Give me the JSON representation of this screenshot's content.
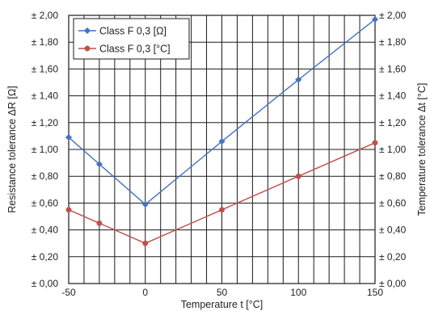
{
  "chart_data": {
    "type": "line",
    "title": "",
    "xlabel": "Temperature t [°C]",
    "ylabel": "Resistance tolerance ΔR [Ω]",
    "ylabel_right": "Temperature tolerance Δt [°C]",
    "x": [
      -50,
      -30,
      0,
      50,
      100,
      150
    ],
    "xlim": [
      -50,
      150
    ],
    "ylim": [
      0,
      2
    ],
    "xticks": [
      -50,
      0,
      50,
      100,
      150
    ],
    "xtick_labels": [
      "-50",
      "0",
      "50",
      "100",
      "150"
    ],
    "ytick_labels": [
      "± 0,00",
      "± 0,20",
      "± 0,40",
      "± 0,60",
      "± 0,80",
      "± 1,00",
      "± 1,20",
      "± 1,40",
      "± 1,60",
      "± 1,80",
      "± 2,00"
    ],
    "grid": true,
    "legend_position": "top-left",
    "series": [
      {
        "name": "Class F 0,3 [Ω]",
        "values": [
          1.09,
          0.89,
          0.59,
          1.06,
          1.52,
          1.97
        ],
        "color": "#4472C4",
        "marker": "diamond",
        "axis": "left"
      },
      {
        "name": "Class F 0,3 [°C]",
        "values": [
          0.55,
          0.45,
          0.3,
          0.55,
          0.8,
          1.05
        ],
        "color": "#C0504D",
        "marker": "circle",
        "axis": "right"
      }
    ]
  }
}
